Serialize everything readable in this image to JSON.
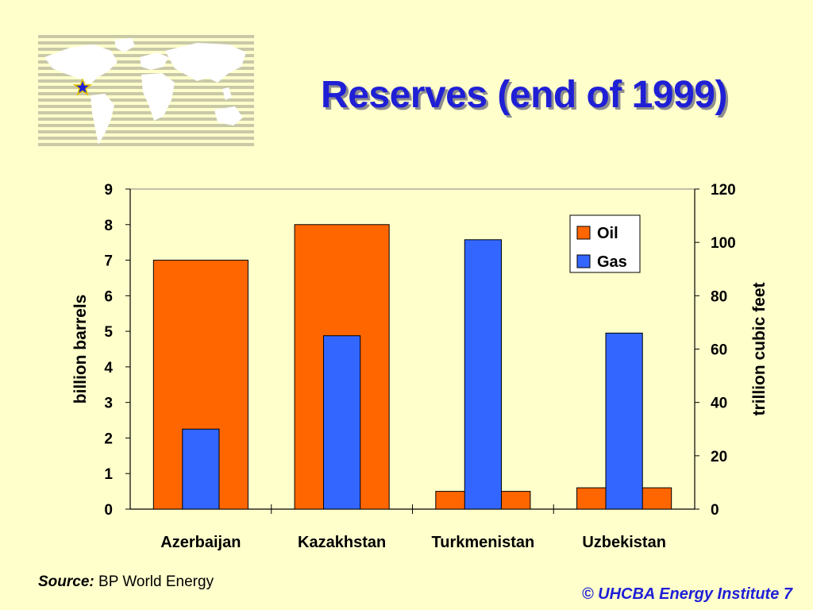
{
  "title": "Reserves (end of 1999)",
  "source": {
    "label": "Source:",
    "text": "BP World Energy"
  },
  "footer": "© UHCBA Energy Institute 7",
  "colors": {
    "oil": "#FF6600",
    "gas": "#3366FF",
    "title": "#1F1FD6",
    "background": "#FFFFCC"
  },
  "chart_data": {
    "type": "bar",
    "categories": [
      "Azerbaijan",
      "Kazakhstan",
      "Turkmenistan",
      "Uzbekistan"
    ],
    "series": [
      {
        "name": "Oil",
        "axis": "left",
        "values": [
          7,
          8,
          0.5,
          0.6
        ]
      },
      {
        "name": "Gas",
        "axis": "right",
        "values": [
          30,
          65,
          101,
          66
        ]
      }
    ],
    "ylabel": "billion barrels",
    "y2label": "trillion cubic feet",
    "ylim": [
      0,
      9
    ],
    "y2lim": [
      0,
      120
    ],
    "yticks": [
      "0",
      "1",
      "2",
      "3",
      "4",
      "5",
      "6",
      "7",
      "8",
      "9"
    ],
    "y2ticks": [
      "0",
      "20",
      "40",
      "60",
      "80",
      "100",
      "120"
    ],
    "legend": {
      "position": "top-right"
    },
    "grid": false
  }
}
